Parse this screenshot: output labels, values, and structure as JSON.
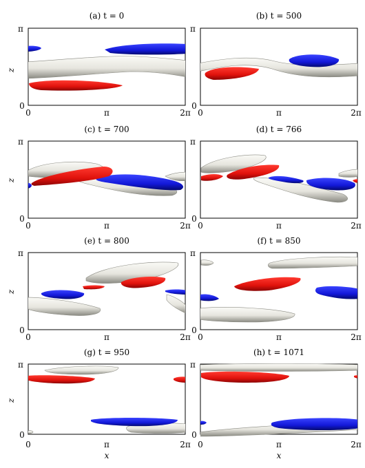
{
  "figure": {
    "panels": [
      {
        "title": "(a) t = 0"
      },
      {
        "title": "(b) t = 500"
      },
      {
        "title": "(c) t = 700"
      },
      {
        "title": "(d) t = 766"
      },
      {
        "title": "(e) t = 800"
      },
      {
        "title": "(f) t = 850"
      },
      {
        "title": "(g) t = 950"
      },
      {
        "title": "(h) t = 1071"
      }
    ],
    "x_ticks": [
      "0",
      "π",
      "2π"
    ],
    "z_ticks": [
      "0",
      "π"
    ],
    "xlabel": "x",
    "ylabel": "z",
    "colors": {
      "positive": "#e8141b",
      "negative": "#1a22d6",
      "surface": "#eeede6",
      "surface_edge": "#7a7a72"
    }
  }
}
